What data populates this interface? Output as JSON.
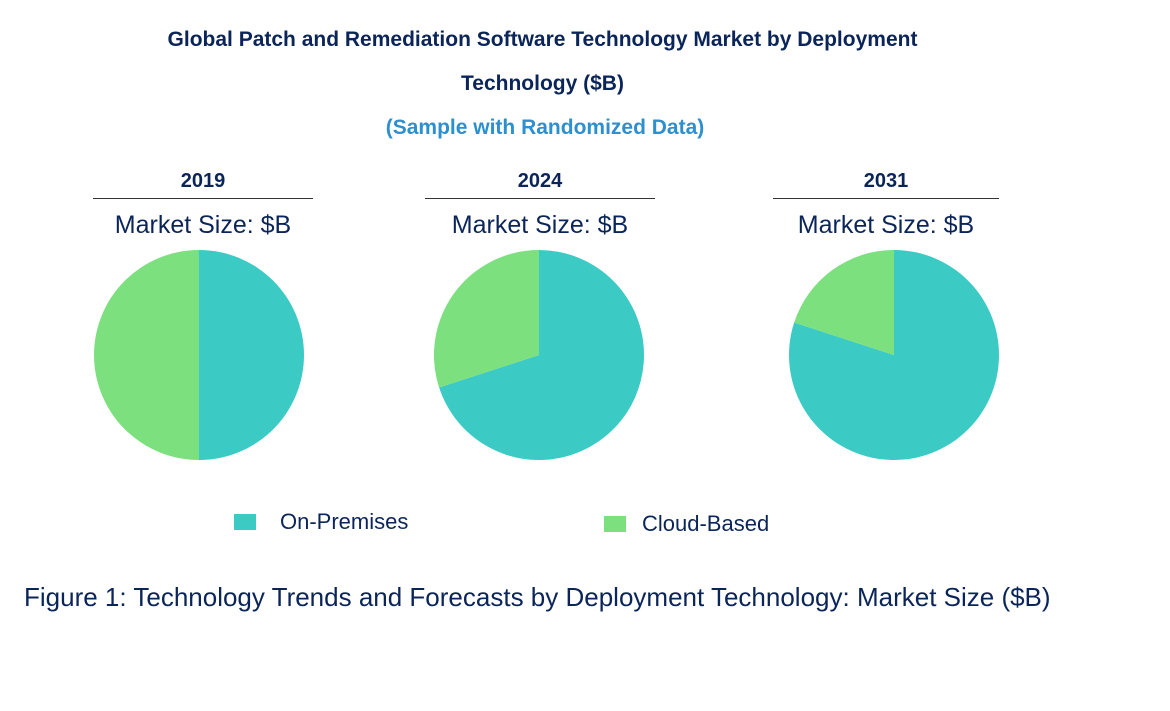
{
  "header": {
    "title_line1": "Global Patch and Remediation Software Technology Market by Deployment",
    "title_line2": "Technology ($B)",
    "subtitle": "(Sample with Randomized Data)"
  },
  "colors": {
    "on_premises": "#3ccac5",
    "cloud_based": "#7ce07e",
    "title": "#0b2559",
    "subtitle": "#2e8fcf"
  },
  "chart_data": [
    {
      "type": "pie",
      "title": "2019",
      "subtitle": "Market Size: $B",
      "labels": [
        "On-Premises",
        "Cloud-Based"
      ],
      "values": [
        50,
        50
      ]
    },
    {
      "type": "pie",
      "title": "2024",
      "subtitle": "Market Size: $B",
      "labels": [
        "On-Premises",
        "Cloud-Based"
      ],
      "values": [
        70,
        30
      ]
    },
    {
      "type": "pie",
      "title": "2031",
      "subtitle": "Market Size: $B",
      "labels": [
        "On-Premises",
        "Cloud-Based"
      ],
      "values": [
        80,
        20
      ]
    }
  ],
  "legend": {
    "items": [
      {
        "label": "On-Premises",
        "color": "#3ccac5"
      },
      {
        "label": "Cloud-Based",
        "color": "#7ce07e"
      }
    ]
  },
  "caption": "Figure 1: Technology Trends and Forecasts by Deployment Technology: Market Size ($B)"
}
